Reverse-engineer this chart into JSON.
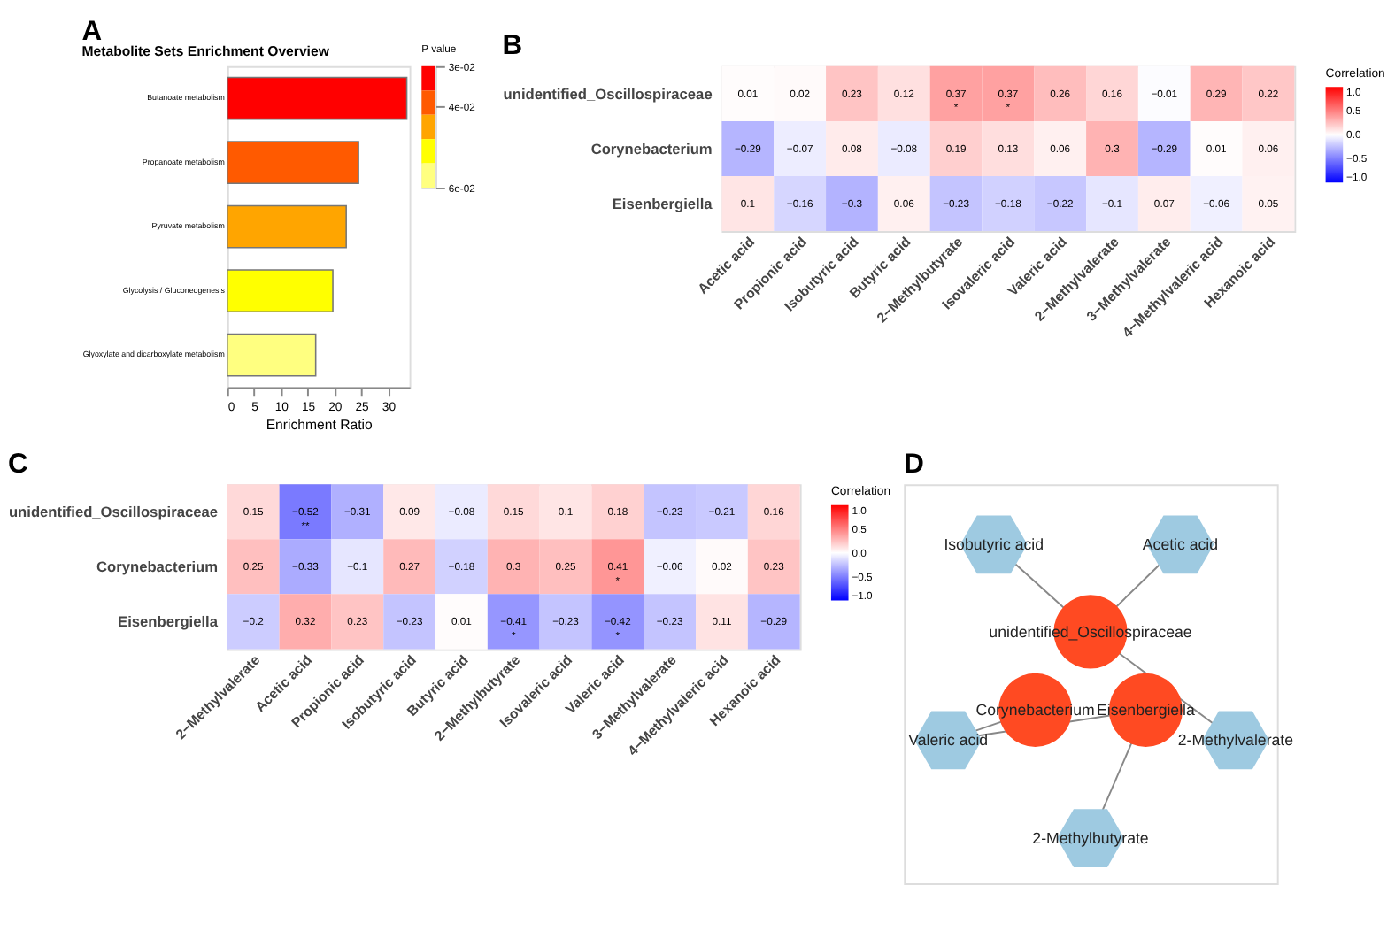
{
  "chart_data": [
    {
      "type": "bar",
      "orientation": "horizontal",
      "title": "Metabolite Sets Enrichment Overview",
      "annotations": [
        "A"
      ],
      "xlabel": "Enrichment Ratio",
      "categories": [
        "Butanoate metabolism",
        "Propanoate metabolism",
        "Pyruvate metabolism",
        "Glycolysis / Gluconeogenesis",
        "Glyoxylate and dicarboxylate metabolism"
      ],
      "values": [
        33.5,
        24.5,
        22.2,
        19.7,
        16.5
      ],
      "colors": [
        "#ff0000",
        "#ff5a00",
        "#ffa500",
        "#ffff00",
        "#ffff80"
      ],
      "xlim": [
        0,
        34
      ],
      "xticks": [
        0,
        5,
        10,
        15,
        20,
        25,
        30
      ],
      "grid": false,
      "clabel": "P value",
      "clim": [
        0.03,
        0.06
      ],
      "cticks": [
        {
          "value": 0.03,
          "label": "3e-02"
        },
        {
          "value": 0.04,
          "label": "4e-02"
        },
        {
          "value": 0.06,
          "label": "6e-02"
        }
      ]
    },
    {
      "type": "heatmap",
      "annotations": [
        "B"
      ],
      "clabel": "Correlation",
      "categories": [
        "Acetic acid",
        "Propionic acid",
        "Isobutyric acid",
        "Butyric acid",
        "2−Methylbutyrate",
        "Isovaleric acid",
        "Valeric acid",
        "2−Methylvalerate",
        "3−Methylvalerate",
        "4−Methylvaleric acid",
        "Hexanoic acid"
      ],
      "y_categories": [
        "unidentified_Oscillospiraceae",
        "Corynebacterium",
        "Eisenbergiella"
      ],
      "cells": [
        [
          0.01,
          0.02,
          0.23,
          0.12,
          0.37,
          0.37,
          0.26,
          0.16,
          -0.01,
          0.29,
          0.22
        ],
        [
          -0.29,
          -0.07,
          0.08,
          -0.08,
          0.19,
          0.13,
          0.06,
          0.3,
          -0.29,
          0.01,
          0.06
        ],
        [
          0.1,
          -0.16,
          -0.3,
          0.06,
          -0.23,
          -0.18,
          -0.22,
          -0.1,
          0.07,
          -0.06,
          0.05
        ]
      ],
      "cell_labels": [
        [
          "0.01",
          "0.02",
          "0.23",
          "0.12",
          "0.37\n*",
          "0.37\n*",
          "0.26",
          "0.16",
          "−0.01",
          "0.29",
          "0.22"
        ],
        [
          "−0.29",
          "−0.07",
          "0.08",
          "−0.08",
          "0.19",
          "0.13",
          "0.06",
          "0.3",
          "−0.29",
          "0.01",
          "0.06"
        ],
        [
          "0.1",
          "−0.16",
          "−0.3",
          "0.06",
          "−0.23",
          "−0.18",
          "−0.22",
          "−0.1",
          "0.07",
          "−0.06",
          "0.05"
        ]
      ],
      "clim": [
        -1,
        1
      ],
      "cticks": [
        {
          "value": 1,
          "label": "1.0"
        },
        {
          "value": 0.5,
          "label": "0.5"
        },
        {
          "value": 0,
          "label": "0.0"
        },
        {
          "value": -0.5,
          "label": "−0.5"
        },
        {
          "value": -1,
          "label": "−1.0"
        }
      ]
    },
    {
      "type": "heatmap",
      "annotations": [
        "C"
      ],
      "clabel": "Correlation",
      "categories": [
        "2−Methylvalerate",
        "Acetic acid",
        "Propionic acid",
        "Isobutyric acid",
        "Butyric acid",
        "2−Methylbutyrate",
        "Isovaleric acid",
        "Valeric acid",
        "3−Methylvalerate",
        "4−Methylvaleric acid",
        "Hexanoic acid"
      ],
      "y_categories": [
        "unidentified_Oscillospiraceae",
        "Corynebacterium",
        "Eisenbergiella"
      ],
      "cells": [
        [
          0.15,
          -0.52,
          -0.31,
          0.09,
          -0.08,
          0.15,
          0.1,
          0.18,
          -0.23,
          -0.21,
          0.16
        ],
        [
          0.25,
          -0.33,
          -0.1,
          0.27,
          -0.18,
          0.3,
          0.25,
          0.41,
          -0.06,
          0.02,
          0.23
        ],
        [
          -0.2,
          0.32,
          0.23,
          -0.23,
          0.01,
          -0.41,
          -0.23,
          -0.42,
          -0.23,
          0.11,
          -0.29
        ]
      ],
      "cell_labels": [
        [
          "0.15",
          "−0.52\n**",
          "−0.31",
          "0.09",
          "−0.08",
          "0.15",
          "0.1",
          "0.18",
          "−0.23",
          "−0.21",
          "0.16"
        ],
        [
          "0.25",
          "−0.33",
          "−0.1",
          "0.27",
          "−0.18",
          "0.3",
          "0.25",
          "0.41\n*",
          "−0.06",
          "0.02",
          "0.23"
        ],
        [
          "−0.2",
          "0.32",
          "0.23",
          "−0.23",
          "0.01",
          "−0.41\n*",
          "−0.23",
          "−0.42\n*",
          "−0.23",
          "0.11",
          "−0.29"
        ]
      ],
      "clim": [
        -1,
        1
      ],
      "cticks": [
        {
          "value": 1,
          "label": "1.0"
        },
        {
          "value": 0.5,
          "label": "0.5"
        },
        {
          "value": 0,
          "label": "0.0"
        },
        {
          "value": -0.5,
          "label": "−0.5"
        },
        {
          "value": -1,
          "label": "−1.0"
        }
      ]
    },
    {
      "type": "other",
      "annotations": [
        "D",
        "Isobutyric acid",
        "Acetic acid",
        "unidentified_Oscillospiraceae",
        "Corynebacterium",
        "Eisenbergiella",
        "Valeric acid",
        "2-Methylvalerate",
        "2-Methylbutyrate"
      ]
    }
  ]
}
